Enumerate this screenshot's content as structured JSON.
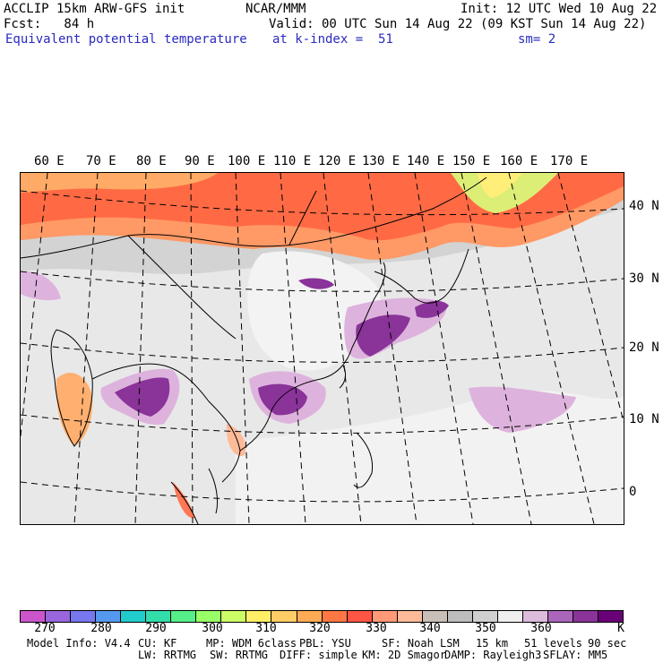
{
  "header": {
    "line1_left": "ACCLIP 15km ARW-GFS init",
    "line1_center": "NCAR/MMM",
    "line1_right": "Init: 12 UTC Wed 10 Aug 22",
    "line2_left": "Fcst:   84 h",
    "line2_right": "Valid: 00 UTC Sun 14 Aug 22 (09 KST Sun 14 Aug 22)",
    "line3_left": "Equivalent potential temperature",
    "line3_mid": "at k-index =  51",
    "line3_right": "sm= 2"
  },
  "map": {
    "lon_labels": [
      "60 E",
      "70 E",
      "80 E",
      "90 E",
      "100 E",
      "110 E",
      "120 E",
      "130 E",
      "140 E",
      "150 E",
      "160 E",
      "170 E"
    ],
    "lat_labels": [
      "40 N",
      "30 N",
      "20 N",
      "10 N",
      "0"
    ]
  },
  "colorbar": {
    "colors": [
      "#cc55cc",
      "#9966dd",
      "#7777ee",
      "#5599ee",
      "#22cccc",
      "#33ddaa",
      "#55ee88",
      "#99ff66",
      "#ccff66",
      "#ffee66",
      "#ffcc66",
      "#ffaa55",
      "#ff7744",
      "#ff5544",
      "#ff9977",
      "#ffbb99",
      "#c8bfb8",
      "#bdbdbd",
      "#d0d0d0",
      "#efefef",
      "#ddbbdd",
      "#aa66bb",
      "#8a3399",
      "#6a0077"
    ],
    "labels": [
      "270",
      "280",
      "290",
      "300",
      "310",
      "320",
      "330",
      "340",
      "350",
      "360"
    ],
    "unit": "K"
  },
  "footer": {
    "line1": [
      "Model Info: V4.4",
      "CU: KF",
      "MP: WDM 6class",
      "PBL: YSU",
      "SF: Noah LSM",
      "15 km",
      "51 levels",
      "90 sec"
    ],
    "line2": [
      "LW: RRTMG",
      "SW: RRTMG",
      "DIFF: simple",
      "KM: 2D Smagor",
      "DAMP: Rayleigh3",
      "SFLAY: MM5"
    ]
  }
}
